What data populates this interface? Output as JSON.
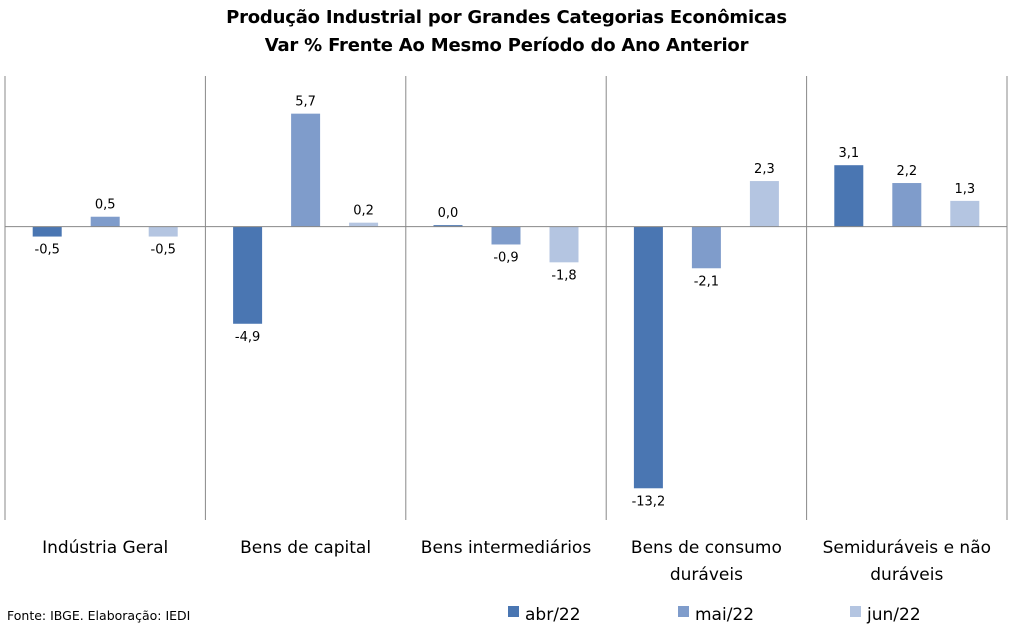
{
  "chart_data": {
    "type": "bar",
    "title": "Produção Industrial por Grandes Categorias Econômicas",
    "subtitle": "Var % Frente Ao Mesmo Período do Ano Anterior",
    "categories": [
      [
        "Indústria Geral"
      ],
      [
        "Bens de capital"
      ],
      [
        "Bens intermediários"
      ],
      [
        "Bens de consumo",
        "duráveis"
      ],
      [
        "Semiduráveis e não",
        "duráveis"
      ]
    ],
    "series": [
      {
        "name": "abr/22",
        "color": "#4A76B2",
        "values": [
          -0.5,
          -4.9,
          0.0,
          -13.2,
          3.1
        ],
        "labels": [
          "-0,5",
          "-4,9",
          "0,0",
          "-13,2",
          "3,1"
        ]
      },
      {
        "name": "mai/22",
        "color": "#7F9CCB",
        "values": [
          0.5,
          5.7,
          -0.9,
          -2.1,
          2.2
        ],
        "labels": [
          "0,5",
          "5,7",
          "-0,9",
          "-2,1",
          "2,2"
        ]
      },
      {
        "name": "jun/22",
        "color": "#B4C5E1",
        "values": [
          -0.5,
          0.2,
          -1.8,
          2.3,
          1.3
        ],
        "labels": [
          "-0,5",
          "0,2",
          "-1,8",
          "2,3",
          "1,3"
        ]
      }
    ],
    "ylim": [
      -14.8,
      7.6
    ],
    "grid": false,
    "legend": "bottom-right"
  },
  "source": "Fonte: IBGE. Elaboração: IEDI"
}
